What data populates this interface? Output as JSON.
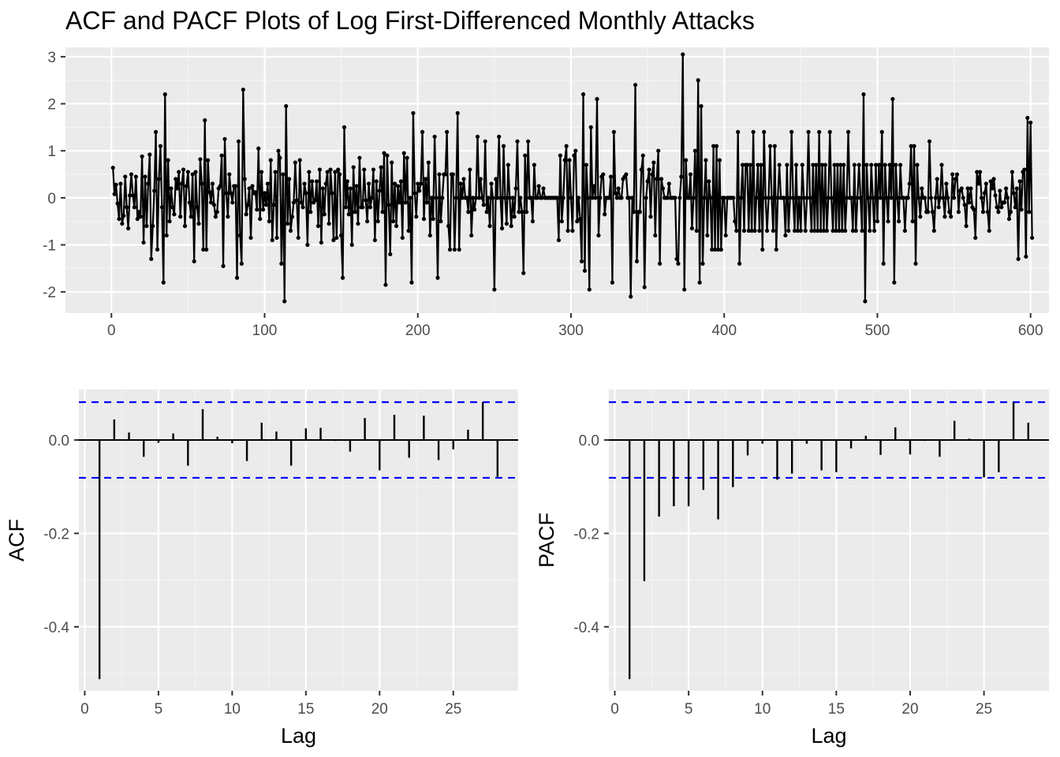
{
  "title": "ACF and PACF Plots of Log First-Differenced Monthly Attacks",
  "chart_data": [
    {
      "type": "line",
      "title": "ACF and PACF Plots of Log First-Differenced Monthly Attacks",
      "xlabel": "",
      "ylabel": "",
      "xlim": [
        -30,
        612
      ],
      "ylim": [
        -2.45,
        3.2
      ],
      "x_ticks": [
        0,
        100,
        200,
        300,
        400,
        500,
        600
      ],
      "y_ticks": [
        -2,
        -1,
        0,
        1,
        2,
        3
      ],
      "grid": true,
      "markers": true,
      "series_color": "#000000",
      "y": [
        0.64,
        0.08,
        0.28,
        -0.12,
        -0.45,
        0.3,
        -0.55,
        -0.38,
        0.45,
        -0.2,
        -0.65,
        0.05,
        0.5,
        0.05,
        -0.2,
        0.45,
        -0.45,
        -0.3,
        -0.4,
        0.88,
        -0.95,
        0.45,
        -0.6,
        0.3,
        0.92,
        -1.3,
        -0.6,
        0.15,
        1.4,
        -1.1,
        0.4,
        1.1,
        -0.2,
        -1.8,
        2.2,
        -0.8,
        0.8,
        -0.5,
        0.2,
        -0.2,
        -0.35,
        0.4,
        0.2,
        0.55,
        -0.4,
        0.3,
        0.6,
        -0.6,
        0.25,
        0.55,
        -0.1,
        -0.4,
        0.5,
        -1.35,
        0.55,
        -0.2,
        -0.55,
        0.82,
        0.3,
        -1.1,
        1.65,
        -1.1,
        0.8,
        0.12,
        -0.1,
        0.3,
        -0.15,
        -0.4,
        -0.3,
        0.2,
        0.25,
        0.9,
        -1.45,
        1.25,
        0.1,
        -0.4,
        0.5,
        0.1,
        -0.1,
        0.25,
        0.25,
        -1.7,
        1.2,
        -0.8,
        -1.4,
        2.3,
        0.4,
        -0.35,
        -0.15,
        0.2,
        -0.85,
        0.25,
        0.1,
        0.12,
        -0.25,
        1.05,
        -0.45,
        0.55,
        -0.25,
        0.1,
        -0.15,
        0.3,
        -0.5,
        0.8,
        -0.9,
        -0.15,
        0.55,
        -0.85,
        1.0,
        0.85,
        -1.4,
        0.5,
        -2.2,
        1.95,
        -0.55,
        0.4,
        -0.7,
        -0.4,
        -0.1,
        0.75,
        -0.05,
        -0.85,
        0.8,
        -0.1,
        -0.2,
        0.3,
        0.1,
        -1.0,
        0.55,
        -0.3,
        0.35,
        -0.1,
        -0.05,
        0.35,
        -0.6,
        0.6,
        -0.95,
        0.2,
        -0.35,
        0.3,
        0.55,
        -0.55,
        0.6,
        0.1,
        -0.9,
        0.55,
        -0.85,
        0.6,
        0.5,
        -0.8,
        -1.7,
        1.5,
        -0.2,
        0.35,
        -0.35,
        0.2,
        -1.0,
        0.65,
        -0.3,
        0.25,
        -0.55,
        0.85,
        -0.2,
        -0.2,
        0.6,
        -0.05,
        -0.5,
        0.3,
        -0.2,
        0.0,
        0.6,
        -0.9,
        0.35,
        -0.5,
        0.15,
        0.65,
        -0.3,
        0.95,
        -1.85,
        0.9,
        -0.15,
        -1.2,
        0.75,
        -0.5,
        0.3,
        -0.6,
        0.25,
        -0.1,
        0.35,
        -0.85,
        0.95,
        -0.1,
        0.85,
        -0.7,
        0.0,
        -1.8,
        1.8,
        0.1,
        -0.4,
        0.3,
        0.15,
        0.3,
        1.4,
        -0.45,
        0.4,
        -0.1,
        0.75,
        -0.8,
        0.0,
        -0.45,
        1.3,
        0.0,
        -1.7,
        0.5,
        -0.5,
        0.0,
        0.5,
        0.5,
        1.4,
        -0.6,
        -1.1,
        0.5,
        0.5,
        -1.1,
        0.0,
        1.8,
        -1.1,
        0.3,
        0.0,
        0.4,
        0.0,
        0.0,
        -0.3,
        0.6,
        -0.8,
        0.0,
        -0.25,
        0.0,
        1.3,
        0.0,
        0.4,
        0.0,
        -0.15,
        1.2,
        -0.3,
        0.0,
        -0.6,
        0.3,
        0.0,
        -1.95,
        0.4,
        0.0,
        1.3,
        0.0,
        -0.65,
        1.1,
        0.0,
        -0.55,
        0.7,
        0.0,
        -0.6,
        0.0,
        -0.4,
        0.2,
        1.2,
        -0.3,
        0.0,
        -0.3,
        -1.6,
        0.9,
        -0.3,
        1.2,
        0.0,
        0.0,
        -0.5,
        0.7,
        0.0,
        0.0,
        0.25,
        0.0,
        0.0,
        0.2,
        0.0,
        0.0,
        0.0,
        0.0,
        0.0,
        0.0,
        0.0,
        0.0,
        0.0,
        -0.9,
        0.9,
        -0.5,
        0.0,
        0.8,
        1.1,
        -0.7,
        0.8,
        0.0,
        -0.7,
        0.9,
        1.0,
        -0.5,
        0.0,
        -0.45,
        -1.35,
        2.2,
        -1.55,
        0.7,
        0.0,
        -1.95,
        1.5,
        0.0,
        0.25,
        0.0,
        2.1,
        -0.8,
        0.0,
        0.45,
        0.5,
        -0.35,
        0.0,
        0.0,
        0.0,
        0.45,
        -1.8,
        1.4,
        0.1,
        0.0,
        0.2,
        0.0,
        0.0,
        0.4,
        0.45,
        0.5,
        0.0,
        0.0,
        -2.1,
        0.0,
        -0.3,
        2.4,
        -1.35,
        -0.3,
        -0.3,
        0.6,
        0.9,
        -1.9,
        0.0,
        0.35,
        0.6,
        -0.4,
        0.5,
        0.75,
        -0.8,
        0.4,
        1.0,
        -1.4,
        0.4,
        0.2,
        0.0,
        0.0,
        0.0,
        0.3,
        0.0,
        0.0,
        0.0,
        0.0,
        -1.3,
        -1.4,
        0.0,
        0.45,
        3.05,
        -1.95,
        0.8,
        0.0,
        0.0,
        0.5,
        -0.65,
        0.0,
        1.0,
        -0.7,
        2.5,
        -1.8,
        1.95,
        -1.4,
        0.0,
        0.8,
        -0.8,
        0.35,
        0.0,
        -1.1,
        1.1,
        -1.1,
        1.1,
        -1.1,
        0.8,
        -1.1,
        0.0,
        0.0,
        -0.8,
        0.0,
        0.0,
        0.0,
        0.0,
        0.0,
        -0.5,
        -0.7,
        1.4,
        -1.4,
        0.0,
        0.7,
        -0.7,
        0.7,
        0.7,
        -0.7,
        0.7,
        -0.7,
        1.4,
        -0.7,
        0.0,
        0.7,
        -0.7,
        0.7,
        -1.1,
        1.4,
        0.0,
        -0.7,
        0.0,
        1.1,
        0.0,
        -0.7,
        1.1,
        -1.1,
        0.0,
        0.7,
        0.0,
        0.0,
        0.0,
        -0.8,
        0.7,
        -0.7,
        0.0,
        1.4,
        0.0,
        -0.7,
        0.7,
        -0.7,
        0.0,
        -0.7,
        0.7,
        0.0,
        -0.7,
        0.0,
        1.4,
        0.0,
        -0.7,
        0.7,
        -0.7,
        0.7,
        -0.7,
        1.4,
        -0.7,
        0.7,
        -0.7,
        0.7,
        -0.7,
        0.0,
        1.4,
        0.0,
        -0.7,
        0.7,
        -0.7,
        0.7,
        -0.7,
        0.7,
        -0.7,
        0.7,
        -0.7,
        0.0,
        1.4,
        0.0,
        0.0,
        -0.7,
        0.7,
        -0.7,
        0.0,
        0.7,
        0.0,
        -0.7,
        2.2,
        -2.2,
        0.7,
        0.0,
        -0.7,
        0.7,
        0.0,
        -0.7,
        0.7,
        -0.5,
        0.7,
        0.0,
        1.4,
        -1.4,
        0.7,
        0.0,
        -0.5,
        0.7,
        0.0,
        2.1,
        -1.8,
        0.7,
        0.0,
        -0.5,
        0.7,
        0.0,
        0.0,
        -0.7,
        0.0,
        0.0,
        0.3,
        1.1,
        -0.5,
        1.1,
        -1.4,
        0.7,
        0.0,
        -0.4,
        0.2,
        0.0,
        0.0,
        -0.3,
        -0.3,
        1.2,
        0.0,
        -0.3,
        -0.7,
        0.0,
        0.4,
        -0.2,
        0.0,
        0.7,
        0.0,
        -0.4,
        0.3,
        0.0,
        -0.3,
        -0.4,
        0.5,
        0.0,
        0.4,
        0.5,
        -0.3,
        0.15,
        0.2,
        0.0,
        -0.15,
        -0.6,
        0.2,
        -0.1,
        0.2,
        -0.2,
        -0.25,
        -0.85,
        0.55,
        0.3,
        0.55,
        0.0,
        -0.3,
        0.1,
        0.3,
        -0.3,
        -0.7,
        0.35,
        0.2,
        0.4,
        0.05,
        -0.2,
        -0.3,
        0.15,
        -0.2,
        -0.1,
        -0.1,
        0.2,
        0.0,
        -0.45,
        -0.3,
        0.55,
        0.1,
        -0.2,
        0.2,
        -1.3,
        0.35,
        -0.25,
        0.55,
        0.6,
        -1.25,
        1.7,
        -0.3,
        1.6,
        -0.85
      ]
    },
    {
      "type": "bar",
      "ylabel": "ACF",
      "xlabel": "Lag",
      "xlim": [
        -0.4,
        29.4
      ],
      "ylim": [
        -0.537,
        0.108
      ],
      "x_ticks": [
        0,
        5,
        10,
        15,
        20,
        25
      ],
      "y_ticks": [
        -0.4,
        -0.2,
        0.0
      ],
      "y_tick_labels": [
        "-0.4",
        "-0.2",
        "0.0"
      ],
      "grid": true,
      "confidence_bound": 0.081,
      "confidence_color": "#0000ff",
      "lags": [
        1,
        2,
        3,
        4,
        5,
        6,
        7,
        8,
        9,
        10,
        11,
        12,
        13,
        14,
        15,
        16,
        17,
        18,
        19,
        20,
        21,
        22,
        23,
        24,
        25,
        26,
        27,
        28
      ],
      "values": [
        -0.512,
        0.044,
        0.016,
        -0.036,
        -0.006,
        0.014,
        -0.055,
        0.066,
        0.007,
        -0.007,
        -0.045,
        0.037,
        0.018,
        -0.055,
        0.025,
        0.026,
        -0.002,
        -0.025,
        0.047,
        -0.065,
        0.054,
        -0.038,
        0.052,
        -0.043,
        -0.02,
        0.022,
        0.081,
        -0.079
      ]
    },
    {
      "type": "bar",
      "ylabel": "PACF",
      "xlabel": "Lag",
      "xlim": [
        -0.4,
        29.4
      ],
      "ylim": [
        -0.537,
        0.108
      ],
      "x_ticks": [
        0,
        5,
        10,
        15,
        20,
        25
      ],
      "y_ticks": [
        -0.4,
        -0.2,
        0.0
      ],
      "y_tick_labels": [
        "-0.4",
        "-0.2",
        "0.0"
      ],
      "grid": true,
      "confidence_bound": 0.081,
      "confidence_color": "#0000ff",
      "lags": [
        1,
        2,
        3,
        4,
        5,
        6,
        7,
        8,
        9,
        10,
        11,
        12,
        13,
        14,
        15,
        16,
        17,
        18,
        19,
        20,
        21,
        22,
        23,
        24,
        25,
        26,
        27,
        28
      ],
      "values": [
        -0.512,
        -0.302,
        -0.164,
        -0.142,
        -0.142,
        -0.107,
        -0.17,
        -0.101,
        -0.033,
        -0.008,
        -0.085,
        -0.072,
        -0.008,
        -0.065,
        -0.069,
        -0.018,
        0.009,
        -0.032,
        0.027,
        -0.031,
        -0.002,
        -0.036,
        0.041,
        0.003,
        -0.08,
        -0.069,
        0.081,
        0.037
      ]
    }
  ]
}
